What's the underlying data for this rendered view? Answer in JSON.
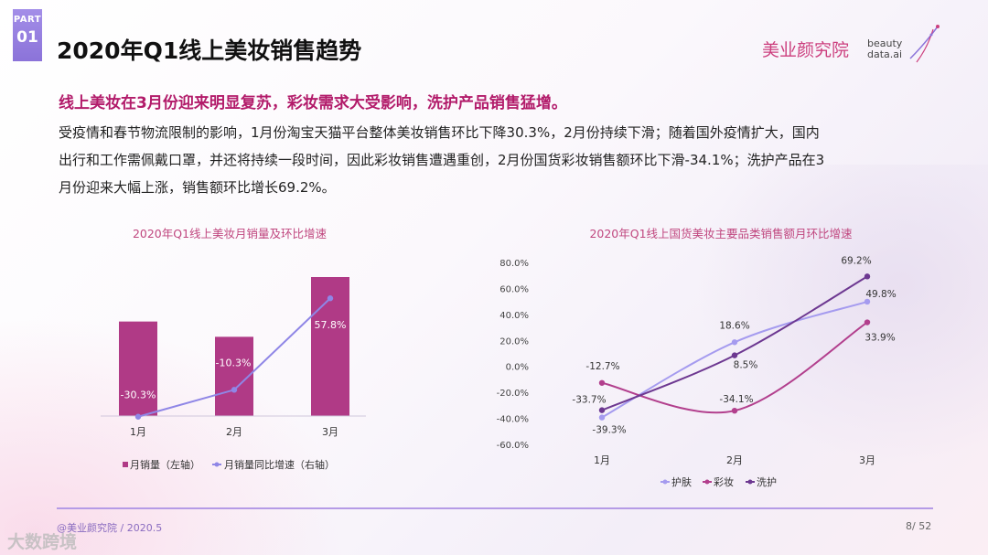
{
  "header": {
    "part_label": "PART",
    "part_number": "01",
    "title": "2020年Q1线上美妆销售趋势",
    "brand": "美业颜究院",
    "brand_sub1": "beauty",
    "brand_sub2": "data.ai"
  },
  "content": {
    "subtitle": "线上美妆在3月份迎来明显复苏，彩妆需求大受影响，洗护产品销售猛增。",
    "lines": [
      "受疫情和春节物流限制的影响，1月份淘宝天猫平台整体美妆销售环比下降30.3%，2月份持续下滑；随着国外疫情扩大，国内",
      "出行和工作需佩戴口罩，并还将持续一段时间，因此彩妆销售遭遇重创，2月份国货彩妆销售额环比下滑-34.1%；洗护产品在3",
      "月份迎来大幅上涨，销售额环比增长69.2%。"
    ]
  },
  "chart_data": [
    {
      "type": "bar",
      "title": "2020年Q1线上美妆月销量及环比增速",
      "categories": [
        "1月",
        "2月",
        "3月"
      ],
      "series": [
        {
          "name": "月销量（左轴）",
          "type": "bar",
          "values": [
            68,
            57,
            100
          ],
          "color": "#b03a86"
        },
        {
          "name": "月销量同比增速（右轴）",
          "type": "line",
          "values": [
            -30.3,
            -10.3,
            57.8
          ],
          "labels": [
            "-30.3%",
            "-10.3%",
            "57.8%"
          ],
          "color": "#8f86e6"
        }
      ],
      "ylim_left": [
        0,
        100
      ],
      "ylim_right": [
        -40,
        60
      ]
    },
    {
      "type": "line",
      "title": "2020年Q1线上国货美妆主要品类销售额月环比增速",
      "categories": [
        "1月",
        "2月",
        "3月"
      ],
      "yticks": [
        "80.0%",
        "60.0%",
        "40.0%",
        "20.0%",
        "0.0%",
        "-20.0%",
        "-40.0%",
        "-60.0%"
      ],
      "ylim": [
        -60,
        80
      ],
      "series": [
        {
          "name": "护肤",
          "values": [
            -39.3,
            18.6,
            49.8
          ],
          "labels": [
            "-39.3%",
            "18.6%",
            "49.8%"
          ],
          "color": "#a59bef"
        },
        {
          "name": "彩妆",
          "values": [
            -12.7,
            -34.1,
            33.9
          ],
          "labels": [
            "-12.7%",
            "-34.1%",
            "33.9%"
          ],
          "color": "#b23f8d"
        },
        {
          "name": "洗护",
          "values": [
            -33.7,
            8.5,
            69.2
          ],
          "labels": [
            "-33.7%",
            "8.5%",
            "69.2%"
          ],
          "color": "#6d3891"
        }
      ]
    }
  ],
  "footer": {
    "source": "@美业颜究院 / 2020.5",
    "page": "8/ 52",
    "watermark": "大数跨境"
  }
}
